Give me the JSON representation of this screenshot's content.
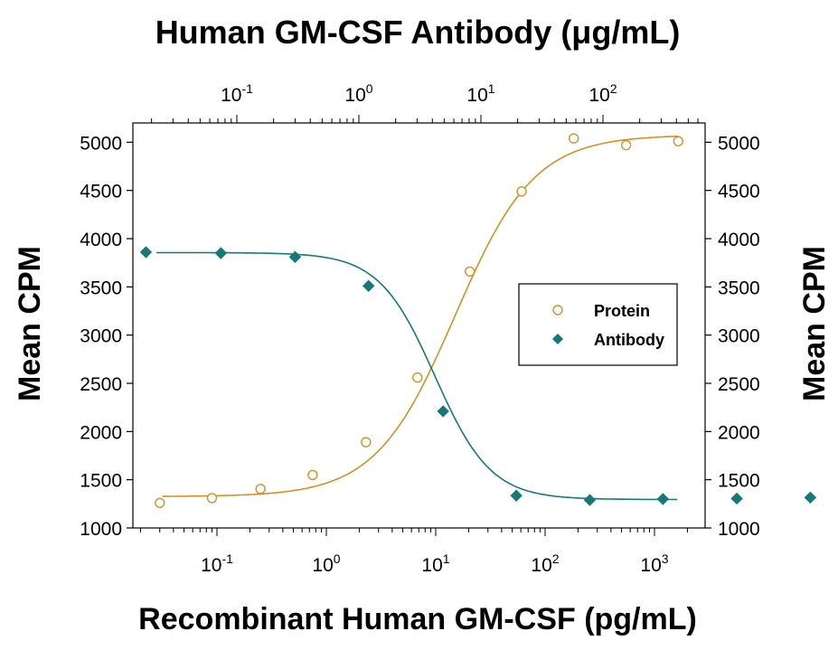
{
  "chart_data": {
    "type": "scatter",
    "title": "Human GM-CSF Antibody (μg/mL)",
    "xlabel": "Recombinant Human GM-CSF (pg/mL)",
    "ylabel": "Mean CPM",
    "ylabel_right": "Mean CPM",
    "x_scale": "log",
    "x_top_scale": "log",
    "y_ticks": [
      1000,
      1500,
      2000,
      2500,
      3000,
      3500,
      4000,
      4500,
      5000
    ],
    "y_tick_labels": [
      "1000",
      "1500",
      "2000",
      "2500",
      "3000",
      "3500",
      "4000",
      "4500",
      "5000"
    ],
    "x_bottom_ticks": [
      {
        "base": "10",
        "exp": "-1"
      },
      {
        "base": "10",
        "exp": "0"
      },
      {
        "base": "10",
        "exp": "1"
      },
      {
        "base": "10",
        "exp": "2"
      },
      {
        "base": "10",
        "exp": "3"
      }
    ],
    "x_top_ticks": [
      {
        "base": "10",
        "exp": "-1"
      },
      {
        "base": "10",
        "exp": "0"
      },
      {
        "base": "10",
        "exp": "1"
      },
      {
        "base": "10",
        "exp": "2"
      }
    ],
    "legend": {
      "placement": "right-center",
      "entries": [
        {
          "label": "Protein",
          "marker": "open-circle"
        },
        {
          "label": "Antibody",
          "marker": "filled-diamond"
        }
      ]
    },
    "colors": {
      "protein": "#D98F22",
      "antibody": "#17787A",
      "axis": "#000000"
    },
    "series": [
      {
        "name": "Protein",
        "axis": "bottom",
        "x": [
          0.03,
          0.09,
          0.25,
          0.75,
          2.3,
          6.8,
          20.5,
          61,
          183,
          550,
          1650
        ],
        "y": [
          1260,
          1310,
          1405,
          1550,
          1890,
          2560,
          3660,
          4490,
          5040,
          4970,
          5010
        ]
      },
      {
        "name": "Antibody",
        "axis": "top",
        "x": [
          0.018,
          0.074,
          0.3,
          1.2,
          4.9,
          19.5,
          78,
          310,
          1250,
          5000
        ],
        "y": [
          3860,
          3850,
          3810,
          3510,
          2210,
          1335,
          1290,
          1300,
          1305,
          1315
        ]
      }
    ],
    "grid": false
  }
}
